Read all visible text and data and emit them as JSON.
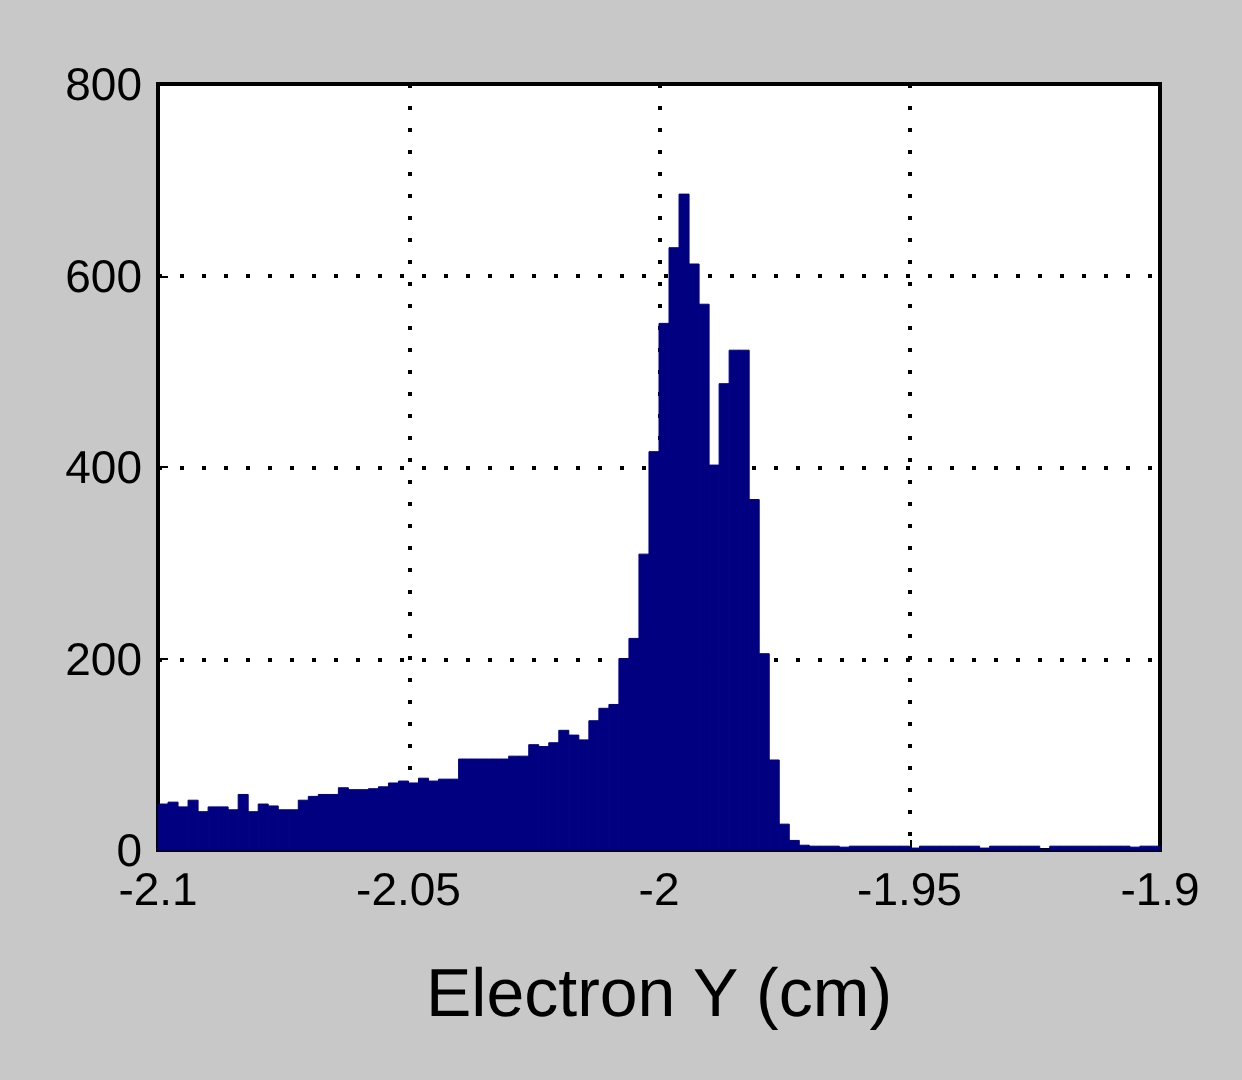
{
  "chart_data": {
    "type": "histogram",
    "xlabel": "Electron Y (cm)",
    "color": "#000080",
    "bins": [
      -2.1,
      -2.098,
      -2.096,
      -2.094,
      -2.092,
      -2.09,
      -2.088,
      -2.086,
      -2.084,
      -2.082,
      -2.08,
      -2.078,
      -2.076,
      -2.074,
      -2.072,
      -2.07,
      -2.068,
      -2.066,
      -2.064,
      -2.062,
      -2.06,
      -2.058,
      -2.056,
      -2.054,
      -2.052,
      -2.05,
      -2.048,
      -2.046,
      -2.044,
      -2.042,
      -2.04,
      -2.038,
      -2.036,
      -2.034,
      -2.032,
      -2.03,
      -2.028,
      -2.026,
      -2.024,
      -2.022,
      -2.02,
      -2.018,
      -2.016,
      -2.014,
      -2.012,
      -2.01,
      -2.008,
      -2.006,
      -2.004,
      -2.002,
      -2,
      -1.998,
      -1.996,
      -1.994,
      -1.992,
      -1.99,
      -1.988,
      -1.986,
      -1.984,
      -1.982,
      -1.98,
      -1.978,
      -1.976,
      -1.974,
      -1.972,
      -1.97,
      -1.968,
      -1.966,
      -1.964,
      -1.962,
      -1.96,
      -1.958,
      -1.956,
      -1.954,
      -1.952,
      -1.95,
      -1.948,
      -1.946,
      -1.944,
      -1.942,
      -1.94,
      -1.938,
      -1.936,
      -1.934,
      -1.932,
      -1.93,
      -1.928,
      -1.926,
      -1.924,
      -1.922,
      -1.92,
      -1.918,
      -1.916,
      -1.914,
      -1.912,
      -1.91,
      -1.908,
      -1.906,
      -1.904,
      -1.902,
      -1.9
    ],
    "values": [
      48,
      50,
      45,
      52,
      40,
      45,
      45,
      42,
      58,
      40,
      48,
      46,
      42,
      42,
      52,
      56,
      58,
      58,
      65,
      63,
      63,
      64,
      66,
      70,
      72,
      70,
      75,
      72,
      74,
      74,
      95,
      95,
      95,
      95,
      95,
      98,
      98,
      110,
      108,
      112,
      125,
      120,
      115,
      135,
      148,
      152,
      200,
      221,
      309,
      416,
      550,
      629,
      685,
      612,
      570,
      402,
      487,
      522,
      522,
      366,
      205,
      94,
      27,
      10,
      5,
      4,
      4,
      4,
      3,
      4,
      4,
      4,
      4,
      4,
      4,
      2,
      4,
      4,
      4,
      4,
      4,
      4,
      2,
      4,
      4,
      4,
      4,
      4,
      0,
      4,
      4,
      4,
      4,
      4,
      4,
      4,
      4,
      3,
      4,
      4
    ],
    "xlim": [
      -2.1,
      -1.9
    ],
    "xticks": [
      -2.1,
      -2.05,
      -2,
      -1.95,
      -1.9
    ],
    "ylim": [
      0,
      800
    ],
    "yticks": [
      0,
      200,
      400,
      600,
      800
    ],
    "grid": true
  }
}
